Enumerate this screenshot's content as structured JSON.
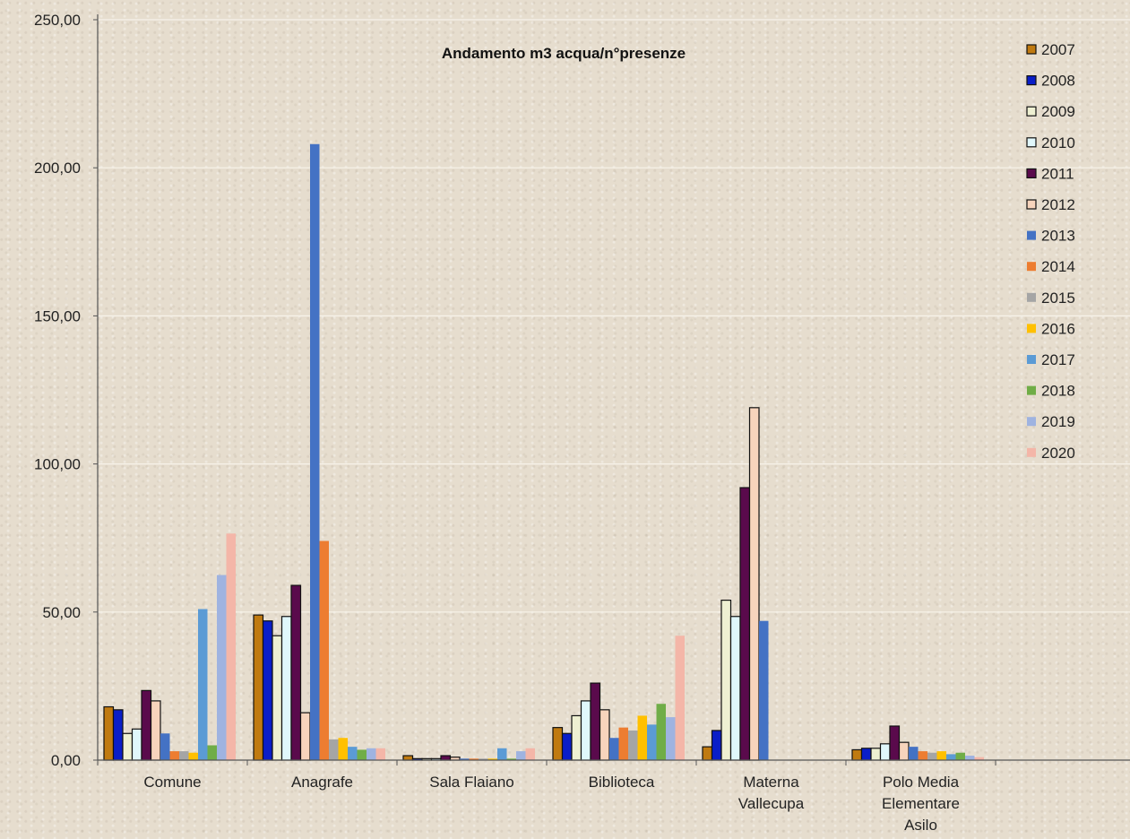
{
  "chart_data": {
    "type": "bar",
    "title": "Andamento m3 acqua/n°presenze",
    "xlabel": "",
    "ylabel": "",
    "ylim": [
      0,
      250
    ],
    "yticks": [
      "0,00",
      "50,00",
      "100,00",
      "150,00",
      "200,00",
      "250,00"
    ],
    "ytick_values": [
      0,
      50,
      100,
      150,
      200,
      250
    ],
    "grid": true,
    "legend_position": "right",
    "categories": [
      [
        "Comune"
      ],
      [
        "Anagrafe"
      ],
      [
        "Sala Flaiano"
      ],
      [
        "Biblioteca"
      ],
      [
        "Materna",
        "Vallecupa"
      ],
      [
        "Polo Media",
        "Elementare",
        "Asilo"
      ]
    ],
    "series": [
      {
        "name": "2007",
        "color": "#c07a10",
        "values": [
          18,
          49,
          1.5,
          11,
          4.5,
          3.5
        ]
      },
      {
        "name": "2008",
        "color": "#0a1ec8",
        "values": [
          17,
          47,
          0.5,
          9,
          10,
          4
        ]
      },
      {
        "name": "2009",
        "color": "#eef0d2",
        "values": [
          9,
          42,
          0.5,
          15,
          54,
          4
        ]
      },
      {
        "name": "2010",
        "color": "#e0f7fb",
        "values": [
          10.5,
          48.5,
          0.5,
          20,
          48.5,
          5.5
        ]
      },
      {
        "name": "2011",
        "color": "#5a0a4c",
        "values": [
          23.5,
          59,
          1.5,
          26,
          92,
          11.5
        ]
      },
      {
        "name": "2012",
        "color": "#f7d4bc",
        "values": [
          20,
          16,
          1,
          17,
          119,
          6
        ]
      },
      {
        "name": "2013",
        "color": "#4472c4",
        "values": [
          9,
          208,
          0.5,
          7.5,
          47,
          4.5
        ]
      },
      {
        "name": "2014",
        "color": "#ed7d31",
        "values": [
          3,
          74,
          0.5,
          11,
          0,
          3
        ]
      },
      {
        "name": "2015",
        "color": "#a5a5a5",
        "values": [
          3,
          7,
          0.5,
          10,
          0,
          2.5
        ]
      },
      {
        "name": "2016",
        "color": "#ffc000",
        "values": [
          2.5,
          7.5,
          0.5,
          15,
          0,
          3
        ]
      },
      {
        "name": "2017",
        "color": "#5b9bd5",
        "values": [
          51,
          4.5,
          4,
          12,
          0,
          2
        ]
      },
      {
        "name": "2018",
        "color": "#70ad47",
        "values": [
          5,
          3.5,
          0.5,
          19,
          0,
          2.5
        ]
      },
      {
        "name": "2019",
        "color": "#9fb3e0",
        "values": [
          62.5,
          4,
          3,
          14.5,
          0,
          1.5
        ]
      },
      {
        "name": "2020",
        "color": "#f4b6a8",
        "values": [
          76.5,
          4,
          4,
          42,
          0,
          1
        ]
      }
    ]
  }
}
